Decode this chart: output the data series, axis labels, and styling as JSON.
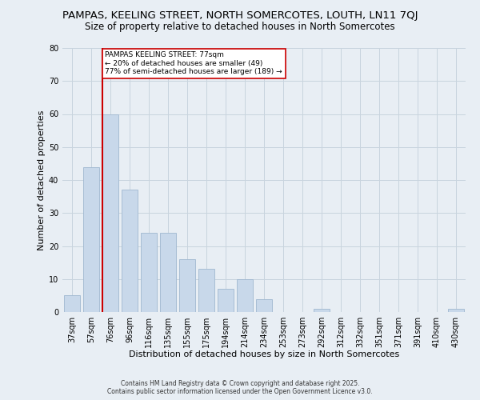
{
  "title1": "PAMPAS, KEELING STREET, NORTH SOMERCOTES, LOUTH, LN11 7QJ",
  "title2": "Size of property relative to detached houses in North Somercotes",
  "xlabel": "Distribution of detached houses by size in North Somercotes",
  "ylabel": "Number of detached properties",
  "categories": [
    "37sqm",
    "57sqm",
    "76sqm",
    "96sqm",
    "116sqm",
    "135sqm",
    "155sqm",
    "175sqm",
    "194sqm",
    "214sqm",
    "234sqm",
    "253sqm",
    "273sqm",
    "292sqm",
    "312sqm",
    "332sqm",
    "351sqm",
    "371sqm",
    "391sqm",
    "410sqm",
    "430sqm"
  ],
  "values": [
    5,
    44,
    60,
    37,
    24,
    24,
    16,
    13,
    7,
    10,
    4,
    0,
    0,
    1,
    0,
    0,
    0,
    0,
    0,
    0,
    1
  ],
  "bar_color": "#c8d8ea",
  "bar_edge_color": "#a0b8d0",
  "vline_x_index": 2,
  "vline_color": "#cc0000",
  "annotation_text": "PAMPAS KEELING STREET: 77sqm\n← 20% of detached houses are smaller (49)\n77% of semi-detached houses are larger (189) →",
  "annotation_box_color": "#ffffff",
  "annotation_box_edge_color": "#cc0000",
  "ylim": [
    0,
    80
  ],
  "yticks": [
    0,
    10,
    20,
    30,
    40,
    50,
    60,
    70,
    80
  ],
  "background_color": "#e8eef4",
  "footer1": "Contains HM Land Registry data © Crown copyright and database right 2025.",
  "footer2": "Contains public sector information licensed under the Open Government Licence v3.0.",
  "title_fontsize": 9.5,
  "subtitle_fontsize": 8.5,
  "axis_label_fontsize": 8,
  "tick_fontsize": 7
}
